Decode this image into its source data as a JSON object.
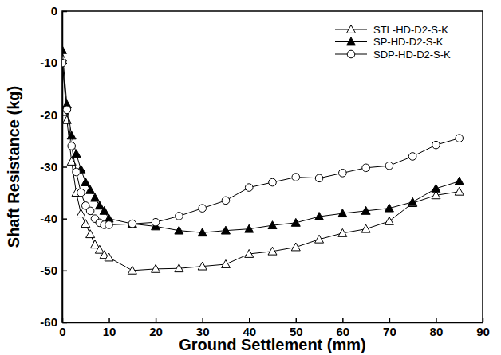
{
  "chart_data": {
    "type": "line",
    "x_label": "Ground Settlement (mm)",
    "y_label": "Shaft Resistance (kg)",
    "x": [
      0,
      1,
      2,
      3,
      4,
      5,
      6,
      7,
      8,
      9,
      10,
      15,
      20,
      25,
      30,
      35,
      40,
      45,
      50,
      55,
      60,
      65,
      70,
      75,
      80,
      85
    ],
    "series": [
      {
        "name": "STL-HD-D2-S-K",
        "color": "#000000",
        "marker": "triangle-open",
        "line_style": "solid",
        "values": [
          -9,
          -21,
          -29,
          -35,
          -39,
          -41,
          -43,
          -45,
          -46,
          -47,
          -47.5,
          -50,
          -49.7,
          -49.6,
          -49.2,
          -48.8,
          -46.8,
          -46.3,
          -45.5,
          -44,
          -42.8,
          -42,
          -40.5,
          -37,
          -35.5,
          -34.8
        ]
      },
      {
        "name": "SP-HD-D2-S-K",
        "color": "#000000",
        "marker": "triangle",
        "line_style": "solid",
        "values": [
          -7.5,
          -18,
          -24,
          -27.5,
          -30.5,
          -33,
          -34.5,
          -36,
          -37.5,
          -38.5,
          -40,
          -41,
          -41.5,
          -42.3,
          -42.7,
          -42.3,
          -42,
          -41.3,
          -40.8,
          -39.6,
          -39,
          -38.5,
          -38,
          -36.8,
          -34.2,
          -32.8
        ]
      },
      {
        "name": "SDP-HD-D2-S-K",
        "color": "#000000",
        "marker": "circle-open",
        "line_style": "solid",
        "values": [
          -10,
          -19,
          -26,
          -31,
          -35,
          -37.5,
          -38.5,
          -40,
          -40.8,
          -41.2,
          -41.2,
          -41,
          -40.7,
          -39.5,
          -38,
          -36.5,
          -34,
          -33,
          -32,
          -32.2,
          -31.2,
          -30.2,
          -29.8,
          -28,
          -25.8,
          -24.5
        ]
      }
    ],
    "xlim": [
      0,
      90
    ],
    "xticks": [
      0,
      10,
      20,
      30,
      40,
      50,
      60,
      70,
      80,
      90
    ],
    "ylim": [
      -60,
      0
    ],
    "yticks": [
      -60,
      -50,
      -40,
      -30,
      -20,
      -10,
      0
    ],
    "legend": "upper right",
    "grid": false
  }
}
